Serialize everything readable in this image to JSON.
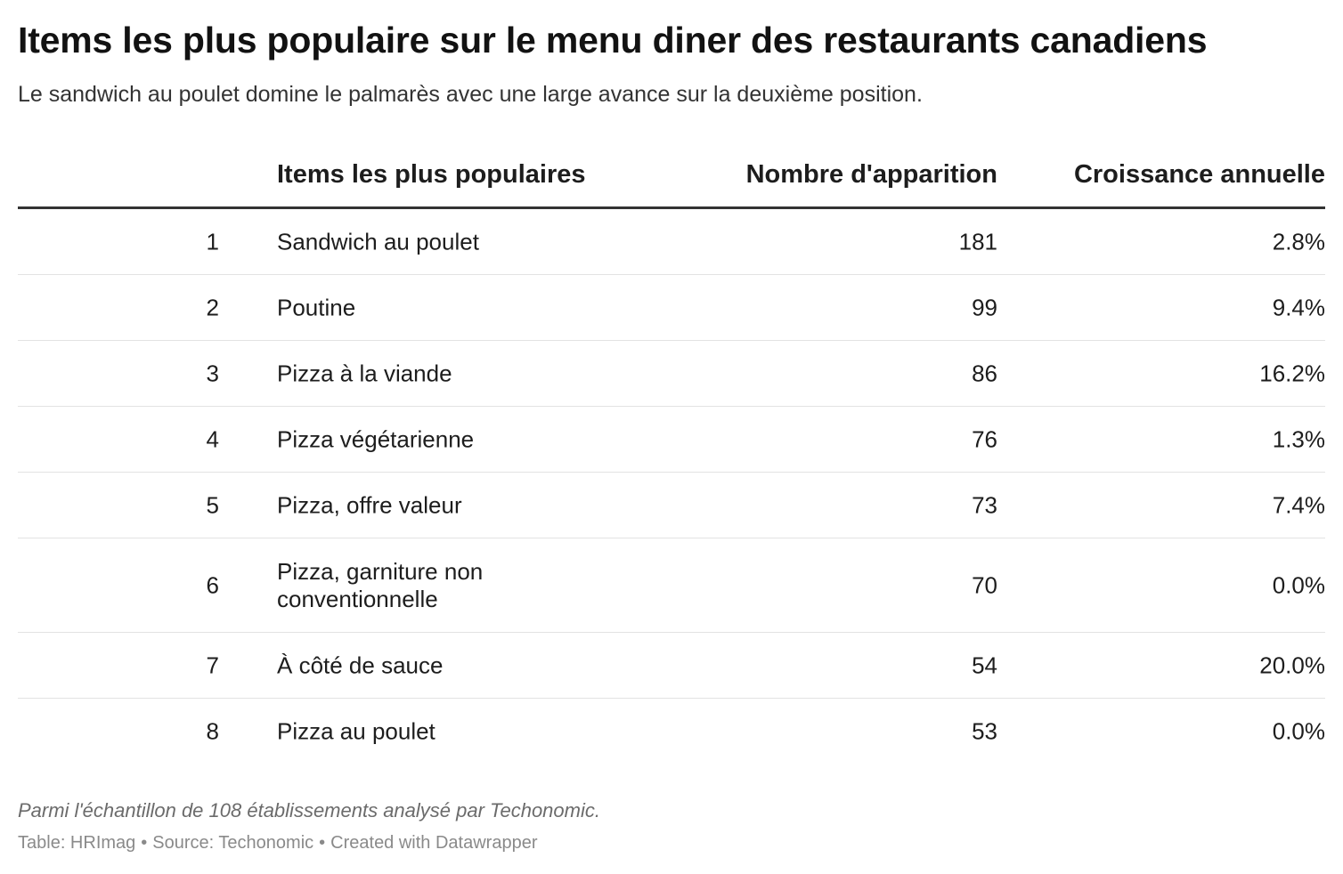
{
  "title": "Items les plus populaire sur le menu diner des restaurants canadiens",
  "subtitle": "Le sandwich au poulet domine le palmarès avec une large avance sur la deuxième position.",
  "chart_data": {
    "type": "table",
    "columns": [
      "",
      "Items les plus populaires",
      "Nombre d'apparition",
      "Croissance annuelle"
    ],
    "rows": [
      {
        "rank": "1",
        "item": "Sandwich au poulet",
        "count": "181",
        "growth": "2.8%"
      },
      {
        "rank": "2",
        "item": "Poutine",
        "count": "99",
        "growth": "9.4%"
      },
      {
        "rank": "3",
        "item": "Pizza à la viande",
        "count": "86",
        "growth": "16.2%"
      },
      {
        "rank": "4",
        "item": "Pizza végétarienne",
        "count": "76",
        "growth": "1.3%"
      },
      {
        "rank": "5",
        "item": "Pizza, offre valeur",
        "count": "73",
        "growth": "7.4%"
      },
      {
        "rank": "6",
        "item": "Pizza, garniture non conventionnelle",
        "count": "70",
        "growth": "0.0%"
      },
      {
        "rank": "7",
        "item": "À côté de sauce",
        "count": "54",
        "growth": "20.0%"
      },
      {
        "rank": "8",
        "item": "Pizza au poulet",
        "count": "53",
        "growth": "0.0%"
      }
    ]
  },
  "note": "Parmi l'échantillon de 108 établissements analysé par Techonomic.",
  "footer": {
    "table": "Table: HRImag",
    "source": "Source: Techonomic",
    "created": "Created with Datawrapper",
    "separator": "•"
  }
}
